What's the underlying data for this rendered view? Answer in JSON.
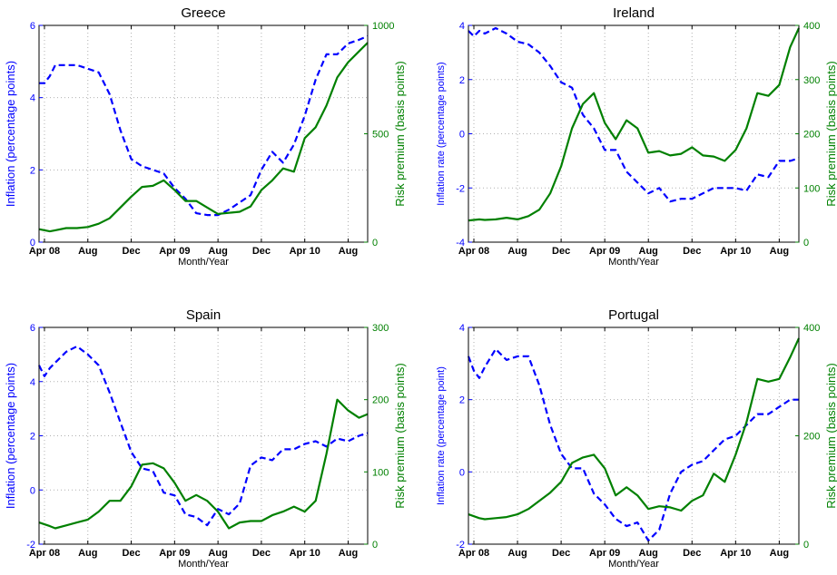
{
  "chart_data": [
    {
      "type": "line",
      "title": "Greece",
      "xlabel": "Month/Year",
      "ylabel_left": "Inflation (percentage points)",
      "ylabel_right": "Risk premium (basis points)",
      "x_tick_labels": [
        "Apr 08",
        "Aug",
        "Dec",
        "Apr 09",
        "Aug",
        "Dec",
        "Apr 10",
        "Aug"
      ],
      "x_tick_months": [
        0,
        4,
        8,
        12,
        16,
        20,
        24,
        28
      ],
      "xlim": [
        -0.5,
        29.8
      ],
      "ylim_left": [
        0,
        6
      ],
      "ylim_right": [
        0,
        1000
      ],
      "yticks_left": [
        "0",
        "2",
        "4",
        "6"
      ],
      "yticks_right": [
        "0",
        "500",
        "1000"
      ],
      "grid": "dotted",
      "series": [
        {
          "side": "left",
          "style": "dashed",
          "color": "#0000ff",
          "x": [
            -0.5,
            0,
            0.5,
            1,
            2,
            3,
            4,
            5,
            6,
            7,
            8,
            9,
            10,
            11,
            12,
            13,
            14,
            15,
            16,
            17,
            18,
            19,
            20,
            21,
            22,
            23,
            24,
            25,
            26,
            27,
            28,
            29,
            29.8
          ],
          "values": [
            4.4,
            4.4,
            4.6,
            4.9,
            4.9,
            4.9,
            4.8,
            4.7,
            4.1,
            3.1,
            2.3,
            2.1,
            2.0,
            1.9,
            1.5,
            1.2,
            0.8,
            0.75,
            0.75,
            0.9,
            1.1,
            1.3,
            2.0,
            2.5,
            2.2,
            2.7,
            3.5,
            4.5,
            5.2,
            5.2,
            5.5,
            5.6,
            5.7
          ]
        },
        {
          "side": "right",
          "style": "solid",
          "color": "#008000",
          "x": [
            -0.5,
            0.5,
            1,
            2,
            3,
            4,
            5,
            6,
            7,
            8,
            9,
            10,
            11,
            12,
            13,
            14,
            15,
            16,
            17,
            18,
            19,
            20,
            21,
            22,
            23,
            24,
            25,
            26,
            27,
            28,
            29,
            29.8
          ],
          "values": [
            60,
            50,
            55,
            65,
            65,
            70,
            85,
            110,
            160,
            210,
            255,
            260,
            285,
            240,
            190,
            190,
            160,
            130,
            135,
            140,
            165,
            240,
            285,
            340,
            325,
            480,
            530,
            630,
            760,
            830,
            880,
            920
          ]
        }
      ]
    },
    {
      "type": "line",
      "title": "Ireland",
      "xlabel": "Month/Year",
      "ylabel_left": "Inflation rate (percentage points)",
      "ylabel_right": "Risk premium (basis points)",
      "x_tick_labels": [
        "Apr 08",
        "Aug",
        "Dec",
        "Apr 09",
        "Aug",
        "Dec",
        "Apr 10",
        "Aug"
      ],
      "x_tick_months": [
        0,
        4,
        8,
        12,
        16,
        20,
        24,
        28
      ],
      "xlim": [
        -0.5,
        29.8
      ],
      "ylim_left": [
        -4,
        4
      ],
      "ylim_right": [
        0,
        400
      ],
      "yticks_left": [
        "-4",
        "-2",
        "0",
        "2",
        "4"
      ],
      "yticks_right": [
        "0",
        "100",
        "200",
        "300",
        "400"
      ],
      "grid": "dotted",
      "series": [
        {
          "side": "left",
          "style": "dashed",
          "color": "#0000ff",
          "x": [
            -0.5,
            0,
            0.5,
            1,
            2,
            3,
            4,
            5,
            6,
            7,
            8,
            9,
            10,
            11,
            12,
            13,
            14,
            15,
            16,
            17,
            18,
            19,
            20,
            21,
            22,
            23,
            24,
            25,
            26,
            27,
            28,
            29,
            29.8
          ],
          "values": [
            3.8,
            3.6,
            3.8,
            3.7,
            3.9,
            3.7,
            3.4,
            3.3,
            3.0,
            2.5,
            1.9,
            1.7,
            0.7,
            0.2,
            -0.6,
            -0.6,
            -1.4,
            -1.8,
            -2.2,
            -2.0,
            -2.5,
            -2.4,
            -2.4,
            -2.2,
            -2.0,
            -2.0,
            -2.0,
            -2.1,
            -1.5,
            -1.6,
            -1.0,
            -1.0,
            -0.9
          ]
        },
        {
          "side": "right",
          "style": "solid",
          "color": "#008000",
          "x": [
            -0.5,
            0.5,
            1,
            2,
            3,
            4,
            5,
            6,
            7,
            8,
            9,
            10,
            11,
            12,
            13,
            14,
            15,
            16,
            17,
            18,
            19,
            20,
            21,
            22,
            23,
            24,
            25,
            26,
            27,
            28,
            29,
            29.8
          ],
          "values": [
            40,
            42,
            41,
            42,
            45,
            42,
            48,
            60,
            90,
            140,
            210,
            255,
            275,
            220,
            190,
            225,
            210,
            165,
            168,
            160,
            163,
            175,
            160,
            158,
            150,
            170,
            210,
            275,
            270,
            290,
            360,
            395
          ]
        }
      ]
    },
    {
      "type": "line",
      "title": "Spain",
      "xlabel": "Month/Year",
      "ylabel_left": "Inflation (percentage points)",
      "ylabel_right": "Risk premium (basis points)",
      "x_tick_labels": [
        "Apr 08",
        "Aug",
        "Dec",
        "Apr 09",
        "Aug",
        "Dec",
        "Apr 10",
        "Aug"
      ],
      "x_tick_months": [
        0,
        4,
        8,
        12,
        16,
        20,
        24,
        28
      ],
      "xlim": [
        -0.5,
        29.8
      ],
      "ylim_left": [
        -2,
        6
      ],
      "ylim_right": [
        0,
        300
      ],
      "yticks_left": [
        "-2",
        "0",
        "2",
        "4",
        "6"
      ],
      "yticks_right": [
        "0",
        "100",
        "200",
        "300"
      ],
      "grid": "dotted",
      "series": [
        {
          "side": "left",
          "style": "dashed",
          "color": "#0000ff",
          "x": [
            -0.5,
            0,
            0.5,
            1,
            2,
            3,
            4,
            5,
            6,
            7,
            8,
            9,
            10,
            11,
            12,
            13,
            14,
            15,
            16,
            17,
            18,
            19,
            20,
            21,
            22,
            23,
            24,
            25,
            26,
            27,
            28,
            29,
            29.8
          ],
          "values": [
            4.6,
            4.2,
            4.5,
            4.7,
            5.1,
            5.3,
            5.0,
            4.6,
            3.6,
            2.5,
            1.4,
            0.8,
            0.7,
            -0.1,
            -0.2,
            -0.9,
            -1.0,
            -1.3,
            -0.7,
            -0.9,
            -0.5,
            0.9,
            1.2,
            1.1,
            1.5,
            1.5,
            1.7,
            1.8,
            1.6,
            1.9,
            1.8,
            2.0,
            2.1
          ]
        },
        {
          "side": "right",
          "style": "solid",
          "color": "#008000",
          "x": [
            -0.5,
            0.5,
            1,
            2,
            3,
            4,
            5,
            6,
            7,
            8,
            9,
            10,
            11,
            12,
            13,
            14,
            15,
            16,
            17,
            18,
            19,
            20,
            21,
            22,
            23,
            24,
            25,
            26,
            27,
            28,
            29,
            29.8
          ],
          "values": [
            30,
            25,
            22,
            26,
            30,
            34,
            45,
            60,
            60,
            80,
            110,
            112,
            105,
            85,
            60,
            68,
            60,
            45,
            22,
            30,
            32,
            32,
            40,
            45,
            52,
            45,
            60,
            125,
            200,
            185,
            175,
            180
          ]
        }
      ]
    },
    {
      "type": "line",
      "title": "Portugal",
      "xlabel": "Month/Year",
      "ylabel_left": "Inflation rate (percentage point)",
      "ylabel_right": "Risk premium (basis points)",
      "x_tick_labels": [
        "Apr 08",
        "Aug",
        "Dec",
        "Apr 09",
        "Aug",
        "Dec",
        "Apr 10",
        "Aug"
      ],
      "x_tick_months": [
        0,
        4,
        8,
        12,
        16,
        20,
        24,
        28
      ],
      "xlim": [
        -0.5,
        29.8
      ],
      "ylim_left": [
        -2,
        4
      ],
      "ylim_right": [
        0,
        400
      ],
      "yticks_left": [
        "-2",
        "0",
        "2",
        "4"
      ],
      "yticks_right": [
        "0",
        "200",
        "400"
      ],
      "grid": "dotted",
      "series": [
        {
          "side": "left",
          "style": "dashed",
          "color": "#0000ff",
          "x": [
            -0.5,
            0,
            0.5,
            1,
            2,
            3,
            4,
            5,
            6,
            7,
            8,
            9,
            10,
            11,
            12,
            13,
            14,
            15,
            16,
            17,
            18,
            19,
            20,
            21,
            22,
            23,
            24,
            25,
            26,
            27,
            28,
            29,
            29.8
          ],
          "values": [
            3.2,
            2.8,
            2.6,
            2.9,
            3.4,
            3.1,
            3.2,
            3.2,
            2.4,
            1.3,
            0.5,
            0.1,
            0.1,
            -0.6,
            -0.9,
            -1.3,
            -1.5,
            -1.4,
            -1.9,
            -1.6,
            -0.6,
            0.0,
            0.2,
            0.3,
            0.6,
            0.9,
            1.0,
            1.3,
            1.6,
            1.6,
            1.8,
            2.0,
            2.0
          ]
        },
        {
          "side": "right",
          "style": "solid",
          "color": "#008000",
          "x": [
            -0.5,
            0.5,
            1,
            2,
            3,
            4,
            5,
            6,
            7,
            8,
            9,
            10,
            11,
            12,
            13,
            14,
            15,
            16,
            17,
            18,
            19,
            20,
            21,
            22,
            23,
            24,
            25,
            26,
            27,
            28,
            29,
            29.8
          ],
          "values": [
            55,
            48,
            46,
            48,
            50,
            55,
            65,
            80,
            95,
            115,
            150,
            160,
            165,
            140,
            90,
            105,
            90,
            65,
            70,
            68,
            62,
            80,
            90,
            130,
            115,
            165,
            225,
            305,
            300,
            305,
            345,
            380
          ]
        }
      ]
    }
  ]
}
